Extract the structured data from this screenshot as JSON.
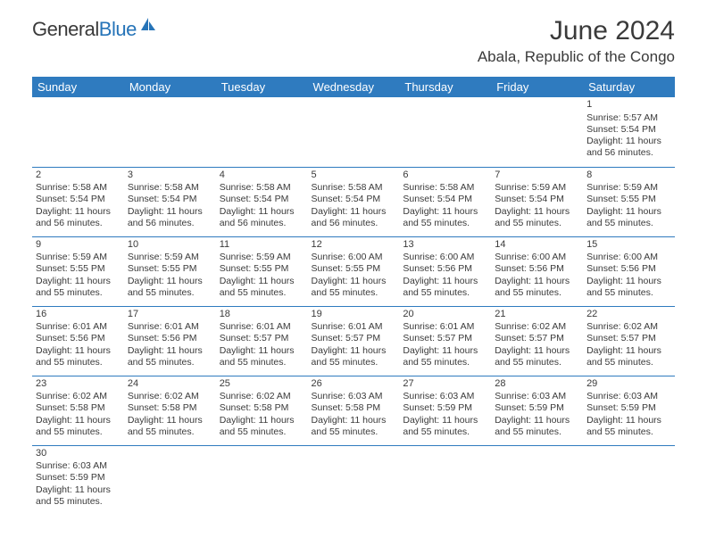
{
  "logo": {
    "text_part1": "General",
    "text_part2": "Blue"
  },
  "title": "June 2024",
  "location": "Abala, Republic of the Congo",
  "colors": {
    "header_bg": "#2f7bbf",
    "header_text": "#ffffff",
    "cell_border": "#2f7bbf",
    "text": "#3a3a3a",
    "brand_blue": "#2674b8"
  },
  "day_headers": [
    "Sunday",
    "Monday",
    "Tuesday",
    "Wednesday",
    "Thursday",
    "Friday",
    "Saturday"
  ],
  "weeks": [
    [
      null,
      null,
      null,
      null,
      null,
      null,
      {
        "n": "1",
        "sr": "5:57 AM",
        "ss": "5:54 PM",
        "d": "11 hours and 56 minutes."
      }
    ],
    [
      {
        "n": "2",
        "sr": "5:58 AM",
        "ss": "5:54 PM",
        "d": "11 hours and 56 minutes."
      },
      {
        "n": "3",
        "sr": "5:58 AM",
        "ss": "5:54 PM",
        "d": "11 hours and 56 minutes."
      },
      {
        "n": "4",
        "sr": "5:58 AM",
        "ss": "5:54 PM",
        "d": "11 hours and 56 minutes."
      },
      {
        "n": "5",
        "sr": "5:58 AM",
        "ss": "5:54 PM",
        "d": "11 hours and 56 minutes."
      },
      {
        "n": "6",
        "sr": "5:58 AM",
        "ss": "5:54 PM",
        "d": "11 hours and 55 minutes."
      },
      {
        "n": "7",
        "sr": "5:59 AM",
        "ss": "5:54 PM",
        "d": "11 hours and 55 minutes."
      },
      {
        "n": "8",
        "sr": "5:59 AM",
        "ss": "5:55 PM",
        "d": "11 hours and 55 minutes."
      }
    ],
    [
      {
        "n": "9",
        "sr": "5:59 AM",
        "ss": "5:55 PM",
        "d": "11 hours and 55 minutes."
      },
      {
        "n": "10",
        "sr": "5:59 AM",
        "ss": "5:55 PM",
        "d": "11 hours and 55 minutes."
      },
      {
        "n": "11",
        "sr": "5:59 AM",
        "ss": "5:55 PM",
        "d": "11 hours and 55 minutes."
      },
      {
        "n": "12",
        "sr": "6:00 AM",
        "ss": "5:55 PM",
        "d": "11 hours and 55 minutes."
      },
      {
        "n": "13",
        "sr": "6:00 AM",
        "ss": "5:56 PM",
        "d": "11 hours and 55 minutes."
      },
      {
        "n": "14",
        "sr": "6:00 AM",
        "ss": "5:56 PM",
        "d": "11 hours and 55 minutes."
      },
      {
        "n": "15",
        "sr": "6:00 AM",
        "ss": "5:56 PM",
        "d": "11 hours and 55 minutes."
      }
    ],
    [
      {
        "n": "16",
        "sr": "6:01 AM",
        "ss": "5:56 PM",
        "d": "11 hours and 55 minutes."
      },
      {
        "n": "17",
        "sr": "6:01 AM",
        "ss": "5:56 PM",
        "d": "11 hours and 55 minutes."
      },
      {
        "n": "18",
        "sr": "6:01 AM",
        "ss": "5:57 PM",
        "d": "11 hours and 55 minutes."
      },
      {
        "n": "19",
        "sr": "6:01 AM",
        "ss": "5:57 PM",
        "d": "11 hours and 55 minutes."
      },
      {
        "n": "20",
        "sr": "6:01 AM",
        "ss": "5:57 PM",
        "d": "11 hours and 55 minutes."
      },
      {
        "n": "21",
        "sr": "6:02 AM",
        "ss": "5:57 PM",
        "d": "11 hours and 55 minutes."
      },
      {
        "n": "22",
        "sr": "6:02 AM",
        "ss": "5:57 PM",
        "d": "11 hours and 55 minutes."
      }
    ],
    [
      {
        "n": "23",
        "sr": "6:02 AM",
        "ss": "5:58 PM",
        "d": "11 hours and 55 minutes."
      },
      {
        "n": "24",
        "sr": "6:02 AM",
        "ss": "5:58 PM",
        "d": "11 hours and 55 minutes."
      },
      {
        "n": "25",
        "sr": "6:02 AM",
        "ss": "5:58 PM",
        "d": "11 hours and 55 minutes."
      },
      {
        "n": "26",
        "sr": "6:03 AM",
        "ss": "5:58 PM",
        "d": "11 hours and 55 minutes."
      },
      {
        "n": "27",
        "sr": "6:03 AM",
        "ss": "5:59 PM",
        "d": "11 hours and 55 minutes."
      },
      {
        "n": "28",
        "sr": "6:03 AM",
        "ss": "5:59 PM",
        "d": "11 hours and 55 minutes."
      },
      {
        "n": "29",
        "sr": "6:03 AM",
        "ss": "5:59 PM",
        "d": "11 hours and 55 minutes."
      }
    ],
    [
      {
        "n": "30",
        "sr": "6:03 AM",
        "ss": "5:59 PM",
        "d": "11 hours and 55 minutes."
      },
      null,
      null,
      null,
      null,
      null,
      null
    ]
  ],
  "labels": {
    "sunrise": "Sunrise: ",
    "sunset": "Sunset: ",
    "daylight": "Daylight: "
  }
}
